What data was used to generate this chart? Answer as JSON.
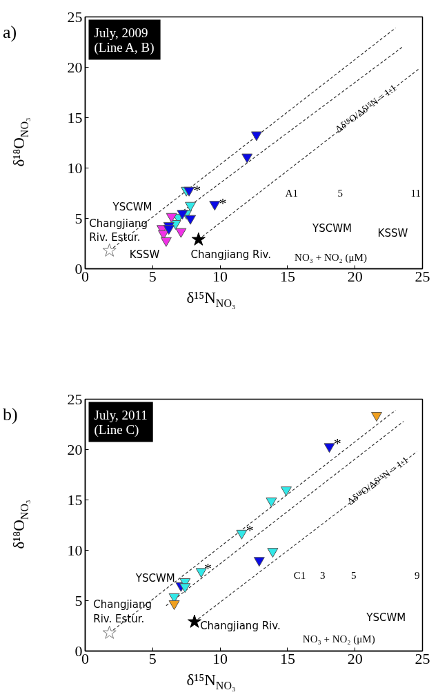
{
  "chart_data": [
    {
      "type": "scatter",
      "title": "July, 2009\n(Line A, B)",
      "xlabel": "δ¹⁵N$_{NO₃}$",
      "ylabel": "δ¹⁸O$_{NO₃}$",
      "xlim": [
        0,
        25
      ],
      "ylim": [
        0,
        25
      ],
      "xticks": [
        0,
        5,
        10,
        15,
        20,
        25
      ],
      "yticks": [
        0,
        5,
        10,
        15,
        20,
        25
      ],
      "series": [
        {
          "type": "line",
          "line_style": "dashed",
          "color": "#333333",
          "x": [
            1.8,
            23.0
          ],
          "values": [
            1.8,
            23.9
          ]
        },
        {
          "type": "line",
          "line_style": "dashed",
          "color": "#333333",
          "x": [
            6.4,
            23.6
          ],
          "values": [
            4.9,
            22.1
          ]
        },
        {
          "type": "line",
          "line_style": "dashed",
          "color": "#333333",
          "x": [
            8.4,
            24.7
          ],
          "values": [
            2.9,
            19.8
          ]
        },
        {
          "marker": "triangle",
          "color": "#33e8e8",
          "x": [
            7.5,
            7.8,
            7.5,
            6.9,
            6.7
          ],
          "values": [
            7.8,
            6.3,
            5.5,
            5.1,
            4.5
          ]
        },
        {
          "marker": "triangle",
          "color": "#f032e6",
          "x": [
            6.4,
            5.7,
            5.8,
            6.0,
            7.1
          ],
          "values": [
            5.2,
            4.0,
            3.5,
            2.8,
            3.7
          ]
        },
        {
          "marker": "triangle",
          "color": "#0a0ae6",
          "x": [
            12.7,
            12.0,
            9.6,
            7.7,
            7.8,
            7.2,
            6.2,
            6.2
          ],
          "values": [
            13.3,
            11.1,
            6.4,
            7.8,
            5.0,
            5.5,
            4.3,
            4.0
          ]
        },
        {
          "marker": "star",
          "color": "#ffffff",
          "x": [
            1.8
          ],
          "values": [
            1.8
          ]
        },
        {
          "marker": "star",
          "color": "#000000",
          "x": [
            8.4
          ],
          "values": [
            2.9
          ]
        }
      ],
      "annotations": [
        "a)",
        "A1",
        "5",
        "11",
        "YSCWM",
        "KSSW",
        "NO₃ + NO₂ (μM)",
        "YSCWM",
        "Changjiang\nRiv. Estur.",
        "KSSW",
        "Changjiang Riv.",
        "*",
        "*",
        "Δδ¹⁸O/Δδ¹⁵N = 1:1"
      ]
    },
    {
      "type": "scatter",
      "title": "July, 2011\n(Line C)",
      "xlabel": "δ¹⁵N$_{NO₃}$",
      "ylabel": "δ¹⁸O$_{NO₃}$",
      "xlim": [
        0,
        25
      ],
      "ylim": [
        0,
        25
      ],
      "xticks": [
        0,
        5,
        10,
        15,
        20,
        25
      ],
      "yticks": [
        0,
        5,
        10,
        15,
        20,
        25
      ],
      "series": [
        {
          "type": "line",
          "line_style": "dashed",
          "color": "#333333",
          "x": [
            1.8,
            23.0
          ],
          "values": [
            1.8,
            23.9
          ]
        },
        {
          "type": "line",
          "line_style": "dashed",
          "color": "#333333",
          "x": [
            6.0,
            23.6
          ],
          "values": [
            4.5,
            22.8
          ]
        },
        {
          "type": "line",
          "line_style": "dashed",
          "color": "#333333",
          "x": [
            8.1,
            24.6
          ],
          "values": [
            2.9,
            19.8
          ]
        },
        {
          "marker": "triangle",
          "color": "#0a0ae6",
          "x": [
            18.1,
            12.9,
            7.1
          ],
          "values": [
            20.3,
            9.0,
            6.5
          ]
        },
        {
          "marker": "triangle",
          "color": "#33e8e8",
          "x": [
            14.9,
            13.8,
            11.6,
            13.9,
            8.6,
            7.4,
            7.4,
            6.6
          ],
          "values": [
            16.0,
            14.9,
            11.7,
            9.9,
            7.9,
            6.9,
            6.4,
            5.4
          ]
        },
        {
          "marker": "triangle",
          "color": "#f0a020",
          "x": [
            21.6,
            6.6
          ],
          "values": [
            23.4,
            4.7
          ]
        },
        {
          "marker": "star",
          "color": "#ffffff",
          "x": [
            1.8
          ],
          "values": [
            1.8
          ]
        },
        {
          "marker": "star",
          "color": "#000000",
          "x": [
            8.1
          ],
          "values": [
            2.9
          ]
        }
      ],
      "annotations": [
        "b)",
        "C1",
        "3",
        "5",
        "9",
        "YSCWM",
        "NO₃ + NO₂ (μM)",
        "YSCWM",
        "Changjiang\nRiv. Estur.",
        "Changjiang Riv.",
        "*",
        "*",
        "*",
        "Δδ¹⁸O/Δδ¹⁵N = 1:1"
      ]
    }
  ]
}
